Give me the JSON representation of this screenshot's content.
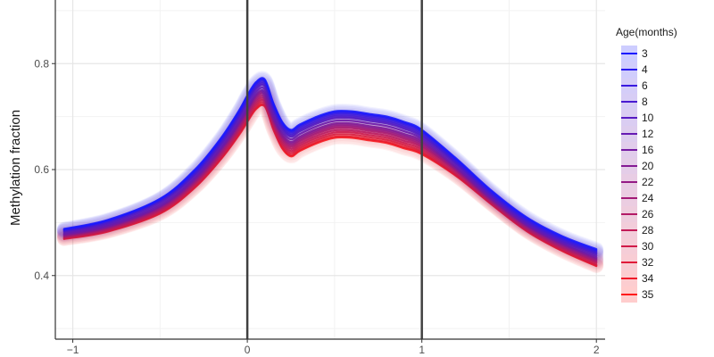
{
  "chart_data": {
    "type": "line",
    "title": "",
    "xlabel": "",
    "ylabel": "Methylation fraction",
    "xlim": [
      -1.1,
      2.05
    ],
    "ylim": [
      0.28,
      0.92
    ],
    "x_ticks": [
      -1,
      0,
      1,
      2
    ],
    "x_tick_labels": [
      "−1",
      "0",
      "1",
      "2"
    ],
    "y_ticks": [
      0.4,
      0.6,
      0.8
    ],
    "y_tick_labels": [
      "0.4",
      "0.6",
      "0.8"
    ],
    "grid": true,
    "vertical_reference_lines": [
      0,
      1
    ],
    "legend": {
      "title": "Age(months)",
      "position": "right",
      "entries": [
        "3",
        "4",
        "6",
        "8",
        "10",
        "12",
        "16",
        "20",
        "22",
        "24",
        "26",
        "28",
        "30",
        "32",
        "34",
        "35"
      ]
    },
    "colors": {
      "young": "#1a1aff",
      "old": "#ff1a1a"
    },
    "x": [
      -1.05,
      -0.8,
      -0.5,
      -0.3,
      -0.15,
      -0.05,
      0.0,
      0.05,
      0.1,
      0.15,
      0.2,
      0.25,
      0.3,
      0.4,
      0.5,
      0.6,
      0.7,
      0.8,
      0.9,
      1.0,
      1.2,
      1.4,
      1.6,
      1.8,
      2.0
    ],
    "series": [
      {
        "name": "3",
        "values": [
          0.488,
          0.505,
          0.545,
          0.6,
          0.66,
          0.71,
          0.74,
          0.765,
          0.77,
          0.725,
          0.69,
          0.675,
          0.685,
          0.7,
          0.71,
          0.71,
          0.705,
          0.7,
          0.69,
          0.675,
          0.62,
          0.56,
          0.51,
          0.475,
          0.45
        ]
      },
      {
        "name": "4",
        "values": [
          0.487,
          0.504,
          0.544,
          0.598,
          0.658,
          0.708,
          0.738,
          0.763,
          0.768,
          0.723,
          0.688,
          0.673,
          0.683,
          0.698,
          0.708,
          0.708,
          0.703,
          0.698,
          0.688,
          0.673,
          0.618,
          0.558,
          0.508,
          0.473,
          0.448
        ]
      },
      {
        "name": "6",
        "values": [
          0.486,
          0.503,
          0.543,
          0.596,
          0.656,
          0.706,
          0.736,
          0.761,
          0.766,
          0.721,
          0.686,
          0.671,
          0.681,
          0.696,
          0.706,
          0.706,
          0.701,
          0.696,
          0.686,
          0.671,
          0.616,
          0.556,
          0.506,
          0.471,
          0.446
        ]
      },
      {
        "name": "8",
        "values": [
          0.485,
          0.502,
          0.542,
          0.594,
          0.654,
          0.703,
          0.733,
          0.758,
          0.763,
          0.718,
          0.683,
          0.668,
          0.678,
          0.693,
          0.703,
          0.703,
          0.698,
          0.693,
          0.683,
          0.668,
          0.614,
          0.554,
          0.504,
          0.469,
          0.444
        ]
      },
      {
        "name": "10",
        "values": [
          0.484,
          0.5,
          0.54,
          0.592,
          0.651,
          0.7,
          0.73,
          0.755,
          0.76,
          0.715,
          0.68,
          0.665,
          0.675,
          0.69,
          0.7,
          0.7,
          0.695,
          0.69,
          0.68,
          0.665,
          0.612,
          0.552,
          0.502,
          0.467,
          0.442
        ]
      },
      {
        "name": "12",
        "values": [
          0.483,
          0.498,
          0.538,
          0.59,
          0.648,
          0.697,
          0.727,
          0.752,
          0.757,
          0.712,
          0.677,
          0.662,
          0.672,
          0.687,
          0.697,
          0.697,
          0.692,
          0.687,
          0.677,
          0.662,
          0.61,
          0.55,
          0.5,
          0.465,
          0.44
        ]
      },
      {
        "name": "16",
        "values": [
          0.481,
          0.496,
          0.535,
          0.587,
          0.645,
          0.693,
          0.722,
          0.747,
          0.752,
          0.707,
          0.672,
          0.657,
          0.667,
          0.682,
          0.692,
          0.692,
          0.687,
          0.682,
          0.672,
          0.658,
          0.607,
          0.548,
          0.498,
          0.463,
          0.437
        ]
      },
      {
        "name": "20",
        "values": [
          0.479,
          0.494,
          0.532,
          0.584,
          0.641,
          0.689,
          0.717,
          0.742,
          0.747,
          0.702,
          0.667,
          0.652,
          0.662,
          0.677,
          0.687,
          0.687,
          0.682,
          0.677,
          0.667,
          0.654,
          0.604,
          0.546,
          0.496,
          0.461,
          0.434
        ]
      },
      {
        "name": "22",
        "values": [
          0.478,
          0.493,
          0.53,
          0.582,
          0.639,
          0.686,
          0.714,
          0.739,
          0.744,
          0.699,
          0.664,
          0.649,
          0.659,
          0.674,
          0.684,
          0.684,
          0.679,
          0.674,
          0.664,
          0.651,
          0.602,
          0.545,
          0.495,
          0.46,
          0.432
        ]
      },
      {
        "name": "24",
        "values": [
          0.477,
          0.491,
          0.528,
          0.579,
          0.636,
          0.683,
          0.711,
          0.736,
          0.741,
          0.696,
          0.661,
          0.646,
          0.656,
          0.671,
          0.681,
          0.681,
          0.676,
          0.671,
          0.661,
          0.648,
          0.6,
          0.543,
          0.494,
          0.458,
          0.43
        ]
      },
      {
        "name": "26",
        "values": [
          0.476,
          0.49,
          0.526,
          0.577,
          0.633,
          0.68,
          0.708,
          0.732,
          0.737,
          0.693,
          0.658,
          0.643,
          0.653,
          0.668,
          0.678,
          0.678,
          0.673,
          0.668,
          0.658,
          0.645,
          0.598,
          0.542,
          0.492,
          0.456,
          0.428
        ]
      },
      {
        "name": "28",
        "values": [
          0.474,
          0.488,
          0.524,
          0.574,
          0.63,
          0.676,
          0.704,
          0.728,
          0.733,
          0.689,
          0.654,
          0.639,
          0.649,
          0.664,
          0.674,
          0.674,
          0.669,
          0.664,
          0.654,
          0.642,
          0.596,
          0.54,
          0.49,
          0.454,
          0.426
        ]
      },
      {
        "name": "30",
        "values": [
          0.473,
          0.487,
          0.522,
          0.572,
          0.627,
          0.673,
          0.7,
          0.724,
          0.729,
          0.685,
          0.65,
          0.635,
          0.645,
          0.66,
          0.67,
          0.67,
          0.665,
          0.66,
          0.65,
          0.638,
          0.593,
          0.538,
          0.488,
          0.452,
          0.424
        ]
      },
      {
        "name": "32",
        "values": [
          0.471,
          0.485,
          0.52,
          0.569,
          0.624,
          0.669,
          0.696,
          0.72,
          0.725,
          0.681,
          0.646,
          0.631,
          0.641,
          0.656,
          0.666,
          0.666,
          0.661,
          0.656,
          0.646,
          0.634,
          0.59,
          0.536,
          0.486,
          0.45,
          0.421
        ]
      },
      {
        "name": "34",
        "values": [
          0.47,
          0.484,
          0.518,
          0.567,
          0.621,
          0.666,
          0.692,
          0.716,
          0.721,
          0.677,
          0.642,
          0.627,
          0.637,
          0.652,
          0.662,
          0.662,
          0.657,
          0.652,
          0.642,
          0.631,
          0.588,
          0.535,
          0.485,
          0.448,
          0.419
        ]
      },
      {
        "name": "35",
        "values": [
          0.469,
          0.483,
          0.517,
          0.566,
          0.62,
          0.664,
          0.69,
          0.714,
          0.719,
          0.675,
          0.64,
          0.625,
          0.635,
          0.65,
          0.66,
          0.66,
          0.655,
          0.65,
          0.64,
          0.629,
          0.587,
          0.534,
          0.484,
          0.447,
          0.418
        ]
      }
    ]
  }
}
